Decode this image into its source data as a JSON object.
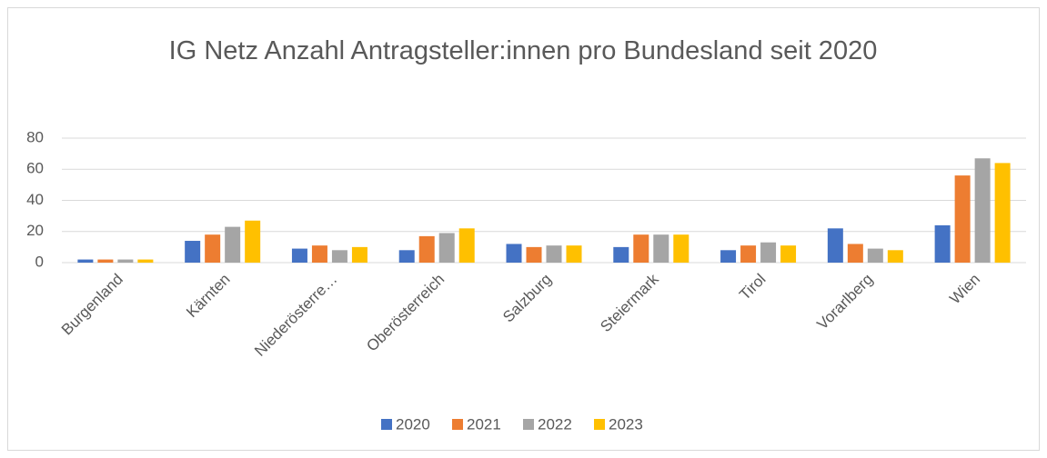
{
  "chart_data": {
    "type": "bar",
    "title": "IG Netz Anzahl Antragsteller:innen pro Bundesland seit 2020",
    "categories": [
      "Burgenland",
      "Kärnten",
      "Niederösterre…",
      "Oberösterreich",
      "Salzburg",
      "Steiermark",
      "Tirol",
      "Vorarlberg",
      "Wien"
    ],
    "series": [
      {
        "name": "2020",
        "color": "#4472c4",
        "values": [
          2,
          14,
          9,
          8,
          12,
          10,
          8,
          22,
          24
        ]
      },
      {
        "name": "2021",
        "color": "#ed7d31",
        "values": [
          2,
          18,
          11,
          17,
          10,
          18,
          11,
          12,
          56
        ]
      },
      {
        "name": "2022",
        "color": "#a5a5a5",
        "values": [
          2,
          23,
          8,
          19,
          11,
          18,
          13,
          9,
          67
        ]
      },
      {
        "name": "2023",
        "color": "#ffc000",
        "values": [
          2,
          27,
          10,
          22,
          11,
          18,
          11,
          8,
          64
        ]
      }
    ],
    "ylim": [
      0,
      80
    ],
    "yticks": [
      0,
      20,
      40,
      60,
      80
    ],
    "grid": true,
    "legend": "bottom"
  }
}
